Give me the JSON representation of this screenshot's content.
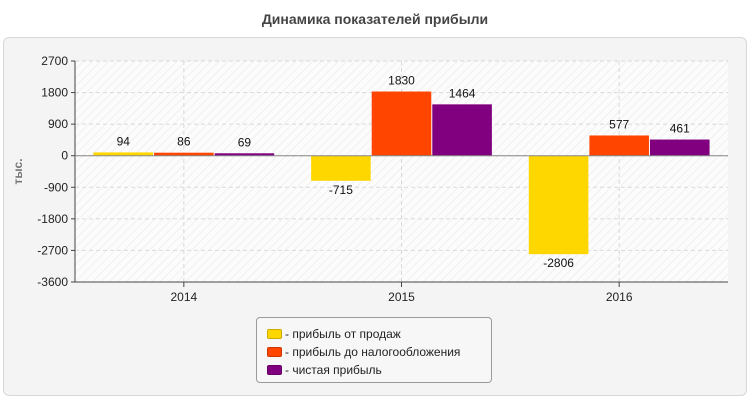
{
  "chart_data": {
    "type": "bar",
    "title": "Динамика показателей прибыли",
    "ylabel": "тыс.",
    "xlabel": "",
    "categories": [
      "2014",
      "2015",
      "2016"
    ],
    "ylim": [
      -3600,
      2700
    ],
    "yticks": [
      2700,
      1800,
      900,
      0,
      -900,
      -1800,
      -2700,
      -3600
    ],
    "grid": true,
    "legend_position": "bottom",
    "series": [
      {
        "name": "- прибыль от продаж",
        "color": "#ffd700",
        "values": [
          94,
          -715,
          -2806
        ]
      },
      {
        "name": "- прибыль до налогообложения",
        "color": "#ff4500",
        "values": [
          86,
          1830,
          577
        ]
      },
      {
        "name": "- чистая прибыль",
        "color": "#800080",
        "values": [
          69,
          1464,
          461
        ]
      }
    ]
  }
}
